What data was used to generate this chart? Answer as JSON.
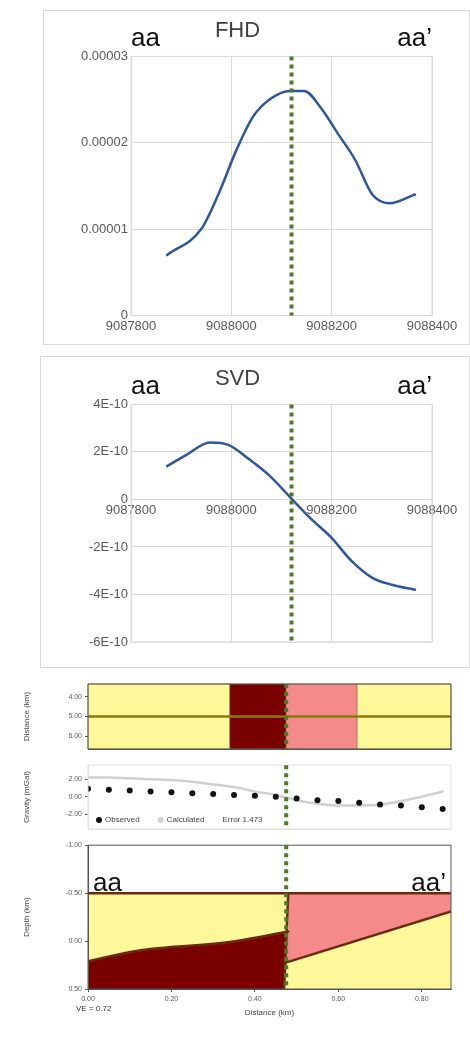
{
  "chart_data": [
    {
      "type": "line",
      "title": "FHD",
      "annotations": [
        "aa",
        "aa’"
      ],
      "x": [
        9087872,
        9087940,
        9087974,
        9088009,
        9088043,
        9088076,
        9088117,
        9088145,
        9088179,
        9088213,
        9088247,
        9088281,
        9088315,
        9088366
      ],
      "series": [
        {
          "color": "#2e55a0",
          "values": [
            7e-06,
            1e-05,
            1.4e-05,
            1.9e-05,
            2.3e-05,
            2.5e-05,
            2.6e-05,
            2.6e-05,
            2.4e-05,
            2.1e-05,
            1.8e-05,
            1.4e-05,
            1.3e-05,
            1.4e-05
          ]
        }
      ],
      "xlim": [
        9087800,
        9088400
      ],
      "xticks": [
        9087800,
        9088000,
        9088200,
        9088400
      ],
      "ylim": [
        0,
        3e-05
      ],
      "yticks": [
        0,
        {
          "value": 1e-05,
          "label": "0.00001"
        },
        {
          "value": 2e-05,
          "label": "0.00002"
        },
        {
          "value": 3e-05,
          "label": "0.00003"
        }
      ],
      "grid": true,
      "ref_lines": [
        {
          "axis": "x",
          "value": 9088120,
          "color": "#4e7a28",
          "line_style": "dotted"
        }
      ]
    },
    {
      "type": "line",
      "title": "SVD",
      "annotations": [
        "aa",
        "aa’"
      ],
      "x": [
        9087872,
        9087912,
        9087957,
        9087994,
        9088035,
        9088076,
        9088117,
        9088158,
        9088199,
        9088240,
        9088281,
        9088322,
        9088366
      ],
      "series": [
        {
          "color": "#2e55a0",
          "values": [
            1.4e-10,
            1.9e-10,
            2.4e-10,
            2.3e-10,
            1.7e-10,
            1e-10,
            1e-11,
            -8e-11,
            -1.6e-10,
            -2.6e-10,
            -3.3e-10,
            -3.6e-10,
            -3.8e-10
          ]
        }
      ],
      "xlim": [
        9087800,
        9088400
      ],
      "xticks": [
        9087800,
        9088000,
        9088200,
        9088400
      ],
      "ylim": [
        -6e-10,
        4e-10
      ],
      "yticks": [
        {
          "value": -6e-10,
          "label": "-6E-10"
        },
        {
          "value": -4e-10,
          "label": "-4E-10"
        },
        {
          "value": -2e-10,
          "label": "-2E-10"
        },
        {
          "value": 0,
          "label": "0"
        },
        {
          "value": 2e-10,
          "label": "2E-10"
        },
        {
          "value": 4e-10,
          "label": "4E-10"
        }
      ],
      "grid": true,
      "ref_lines": [
        {
          "axis": "x",
          "value": 9088120,
          "color": "#4e7a28",
          "line_style": "dotted"
        }
      ]
    },
    {
      "type": "line",
      "ylabel": "Distance (km)",
      "x": [
        0,
        0.87
      ],
      "series": [
        {
          "color": "#8a7a10",
          "values": [
            5,
            5
          ]
        }
      ],
      "xlim": [
        0,
        0.87
      ],
      "ylim": [
        6.65,
        3.35
      ],
      "yticks": [
        {
          "value": 4,
          "label": "4.00"
        },
        {
          "value": 5,
          "label": "5.00"
        },
        {
          "value": 6,
          "label": "6.00"
        }
      ],
      "tick_labels": "y",
      "bands": [
        {
          "axis": "x",
          "from": 0,
          "to": 0.34,
          "color": "#fdf89a"
        },
        {
          "axis": "x",
          "from": 0.34,
          "to": 0.475,
          "color": "#7a0000"
        },
        {
          "axis": "x",
          "from": 0.475,
          "to": 0.645,
          "color": "#f48a8a"
        },
        {
          "axis": "x",
          "from": 0.645,
          "to": 0.87,
          "color": "#fdf89a"
        }
      ],
      "ref_lines": [
        {
          "axis": "x",
          "value": 0.475,
          "color": "#4e7a28",
          "line_style": "dotted"
        }
      ]
    },
    {
      "type": "scatter",
      "ylabel": "Gravity (mGal)",
      "legend": "bottom left",
      "marker": "circle",
      "annotations": [
        "Error 1.473"
      ],
      "x": [
        0,
        0.05,
        0.1,
        0.15,
        0.2,
        0.25,
        0.3,
        0.35,
        0.4,
        0.45,
        0.5,
        0.55,
        0.6,
        0.65,
        0.7,
        0.75,
        0.8,
        0.85
      ],
      "xlim": [
        0,
        0.87
      ],
      "ref_lines": [
        {
          "axis": "x",
          "value": 0.475,
          "color": "#4e7a28",
          "line_style": "dotted"
        }
      ],
      "series": [
        {
          "name": "Observed",
          "color": "#111111",
          "values": [
            0.9,
            0.8,
            0.7,
            0.6,
            0.5,
            0.4,
            0.3,
            0.2,
            0.1,
            0.0,
            -0.2,
            -0.4,
            -0.5,
            -0.7,
            -0.9,
            -1.0,
            -1.2,
            -1.4
          ]
        },
        {
          "name": "Calculated",
          "type": "line",
          "marker": "none",
          "color": "#d0d0d0",
          "values": [
            2.2,
            2.2,
            2.1,
            2.0,
            1.9,
            1.7,
            1.4,
            1.1,
            0.6,
            0.2,
            -0.4,
            -0.8,
            -1.0,
            -1.0,
            -0.9,
            -0.5,
            0.0,
            0.6
          ]
        }
      ],
      "ylim": [
        -3.7,
        3.6
      ],
      "yticks": [
        {
          "value": -2,
          "label": "-2.00"
        },
        {
          "value": 0,
          "label": "0.00"
        },
        {
          "value": 2,
          "label": "2.00"
        }
      ],
      "tick_labels": "y"
    },
    {
      "type": "line",
      "xlabel": "Distance (km)",
      "ylabel": "Depth (km)",
      "annotations": [
        "aa",
        "aa’",
        "VE = 0.72"
      ],
      "series": [
        {
          "color": "#6b2a10",
          "x": [
            0,
            0.87
          ],
          "values": [
            -0.5,
            -0.5
          ]
        },
        {
          "color": "#6b2a10",
          "x": [
            0,
            0.12,
            0.34,
            0.48
          ],
          "values": [
            0.21,
            0.1,
            0.01,
            -0.1
          ]
        },
        {
          "color": "#6b2a10",
          "x": [
            0.48,
            0.47
          ],
          "values": [
            -0.5,
            0.5
          ]
        },
        {
          "color": "#6b2a10",
          "x": [
            0.47,
            0.87
          ],
          "values": [
            0.23,
            -0.31
          ]
        }
      ],
      "xlim": [
        0,
        0.87
      ],
      "xticks": [
        {
          "value": 0,
          "label": "0.00"
        },
        {
          "value": 0.2,
          "label": "0.20"
        },
        {
          "value": 0.4,
          "label": "0.40"
        },
        {
          "value": 0.6,
          "label": "0.60"
        },
        {
          "value": 0.8,
          "label": "0.80"
        }
      ],
      "ylim": [
        0.5,
        -1.0
      ],
      "yticks": [
        {
          "value": -1,
          "label": "-1.00"
        },
        {
          "value": -0.5,
          "label": "-0.50"
        },
        {
          "value": 0,
          "label": "0.00"
        },
        {
          "value": 0.5,
          "label": "0.50"
        }
      ],
      "ref_lines": [
        {
          "axis": "x",
          "value": 0.475,
          "color": "#4e7a28",
          "line_style": "dotted"
        }
      ]
    }
  ]
}
